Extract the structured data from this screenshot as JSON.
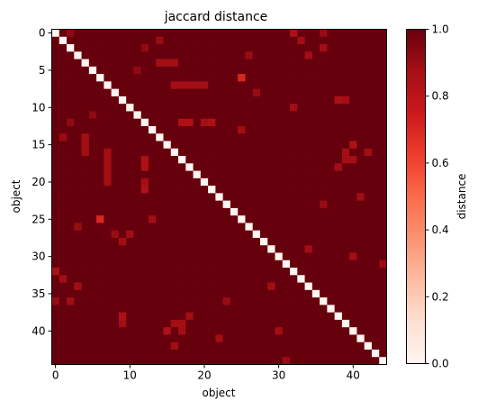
{
  "chart_data": {
    "type": "heatmap",
    "title": "jaccard distance",
    "xlabel": "object",
    "ylabel": "object",
    "n": 45,
    "diagonal_value": 0.0,
    "base_value": 1.0,
    "x_ticks": [
      0,
      10,
      20,
      30,
      40
    ],
    "y_ticks": [
      0,
      5,
      10,
      15,
      20,
      25,
      30,
      35,
      40
    ],
    "x_tick_labels": [
      "0",
      "10",
      "20",
      "30",
      "40"
    ],
    "y_tick_labels": [
      "0",
      "5",
      "10",
      "15",
      "20",
      "25",
      "30",
      "35",
      "40"
    ],
    "colorbar": {
      "label": "distance",
      "min": 0.0,
      "max": 1.0,
      "ticks": [
        0.0,
        0.2,
        0.4,
        0.6,
        0.8,
        1.0
      ],
      "tick_labels": [
        "0.0",
        "0.2",
        "0.4",
        "0.6",
        "0.8",
        "1.0"
      ],
      "colormap": "Reds"
    },
    "off_values": [
      [
        0,
        2,
        0.92
      ],
      [
        0,
        32,
        0.85
      ],
      [
        0,
        36,
        0.9
      ],
      [
        1,
        14,
        0.9
      ],
      [
        1,
        33,
        0.88
      ],
      [
        2,
        12,
        0.92
      ],
      [
        2,
        36,
        0.88
      ],
      [
        3,
        26,
        0.9
      ],
      [
        3,
        34,
        0.88
      ],
      [
        4,
        14,
        0.88
      ],
      [
        4,
        15,
        0.88
      ],
      [
        4,
        16,
        0.88
      ],
      [
        6,
        25,
        0.7
      ],
      [
        7,
        16,
        0.88
      ],
      [
        7,
        17,
        0.88
      ],
      [
        7,
        18,
        0.88
      ],
      [
        7,
        19,
        0.88
      ],
      [
        7,
        20,
        0.88
      ],
      [
        9,
        38,
        0.85
      ],
      [
        9,
        39,
        0.88
      ],
      [
        10,
        32,
        0.88
      ],
      [
        12,
        17,
        0.85
      ],
      [
        12,
        18,
        0.85
      ],
      [
        12,
        20,
        0.88
      ],
      [
        12,
        21,
        0.85
      ],
      [
        13,
        25,
        0.88
      ],
      [
        15,
        40,
        0.85
      ],
      [
        16,
        39,
        0.88
      ],
      [
        16,
        42,
        0.88
      ],
      [
        17,
        39,
        0.88
      ],
      [
        17,
        40,
        0.88
      ],
      [
        18,
        38,
        0.88
      ],
      [
        17,
        12,
        0.85
      ],
      [
        18,
        12,
        0.85
      ],
      [
        20,
        7,
        0.88
      ],
      [
        21,
        12,
        0.85
      ],
      [
        25,
        13,
        0.88
      ],
      [
        25,
        6,
        0.7
      ],
      [
        26,
        3,
        0.9
      ],
      [
        27,
        10,
        0.88
      ],
      [
        28,
        9,
        0.88
      ],
      [
        30,
        40,
        0.88
      ],
      [
        32,
        0,
        0.85
      ],
      [
        33,
        1,
        0.88
      ],
      [
        34,
        3,
        0.88
      ],
      [
        36,
        0,
        0.9
      ],
      [
        36,
        2,
        0.88
      ],
      [
        38,
        9,
        0.85
      ],
      [
        38,
        18,
        0.88
      ],
      [
        39,
        9,
        0.88
      ],
      [
        39,
        16,
        0.88
      ],
      [
        39,
        17,
        0.88
      ],
      [
        40,
        15,
        0.85
      ],
      [
        40,
        17,
        0.88
      ],
      [
        40,
        30,
        0.88
      ],
      [
        42,
        16,
        0.88
      ],
      [
        41,
        22,
        0.88
      ],
      [
        22,
        41,
        0.88
      ],
      [
        23,
        36,
        0.9
      ],
      [
        36,
        23,
        0.9
      ],
      [
        29,
        34,
        0.88
      ],
      [
        34,
        29,
        0.88
      ],
      [
        31,
        44,
        0.9
      ],
      [
        44,
        31,
        0.9
      ],
      [
        5,
        11,
        0.92
      ],
      [
        11,
        5,
        0.92
      ],
      [
        8,
        27,
        0.9
      ],
      [
        27,
        8,
        0.9
      ],
      [
        14,
        1,
        0.9
      ],
      [
        14,
        4,
        0.88
      ],
      [
        15,
        4,
        0.88
      ],
      [
        16,
        4,
        0.88
      ],
      [
        16,
        7,
        0.88
      ],
      [
        17,
        7,
        0.88
      ],
      [
        18,
        7,
        0.88
      ],
      [
        19,
        7,
        0.88
      ],
      [
        20,
        12,
        0.88
      ],
      [
        12,
        2,
        0.92
      ]
    ]
  }
}
